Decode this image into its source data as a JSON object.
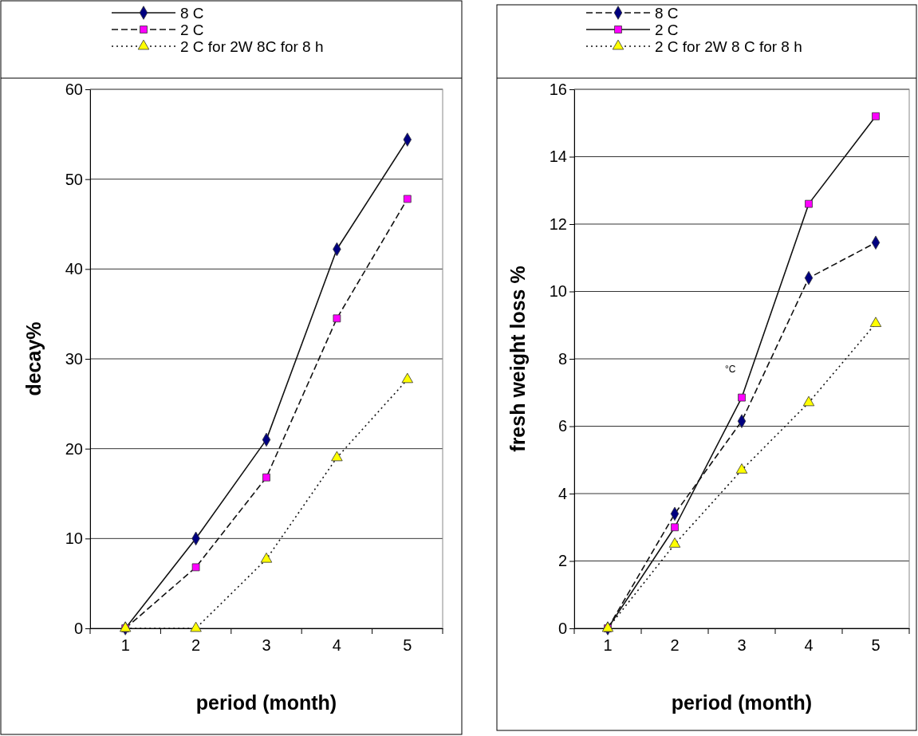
{
  "chart_data": [
    {
      "type": "line",
      "categories": [
        "1",
        "2",
        "3",
        "4",
        "5"
      ],
      "xlabel": "period (month)",
      "ylabel": "decay%",
      "ylim": [
        0,
        60
      ],
      "yticks": [
        0,
        10,
        20,
        30,
        40,
        50,
        60
      ],
      "grid": "y",
      "legend": "top",
      "series": [
        {
          "name": "8 C",
          "color": "#000080",
          "marker": "diamond",
          "line_style": "solid",
          "values": [
            0,
            10,
            21,
            42.2,
            54.4
          ]
        },
        {
          "name": "2 C",
          "color": "#ff00ff",
          "marker": "square",
          "line_style": "dashed",
          "values": [
            0,
            6.8,
            16.8,
            34.5,
            47.8
          ]
        },
        {
          "name": "2 C for 2W 8C for 8 h",
          "color": "#ffff00",
          "marker": "triangle",
          "line_style": "dotted",
          "values": [
            0,
            0,
            7.7,
            19,
            27.7
          ]
        }
      ]
    },
    {
      "type": "line",
      "categories": [
        "1",
        "2",
        "3",
        "4",
        "5"
      ],
      "xlabel": "period (month)",
      "ylabel": "fresh weight loss %",
      "ylim": [
        0,
        16
      ],
      "yticks": [
        0,
        2,
        4,
        6,
        8,
        10,
        12,
        14,
        16
      ],
      "grid": "y",
      "legend": "top",
      "annotations": [
        "°C"
      ],
      "series": [
        {
          "name": "8 C",
          "color": "#000080",
          "marker": "diamond",
          "line_style": "dashed",
          "values": [
            0,
            3.4,
            6.15,
            10.4,
            11.45
          ]
        },
        {
          "name": "2 C",
          "color": "#ff00ff",
          "marker": "square",
          "line_style": "solid",
          "values": [
            0,
            3.0,
            6.85,
            12.6,
            15.2
          ]
        },
        {
          "name": "2 C for 2W 8 C for 8 h",
          "color": "#ffff00",
          "marker": "triangle",
          "line_style": "dotted",
          "values": [
            0,
            2.5,
            4.7,
            6.7,
            9.05
          ]
        }
      ]
    }
  ]
}
